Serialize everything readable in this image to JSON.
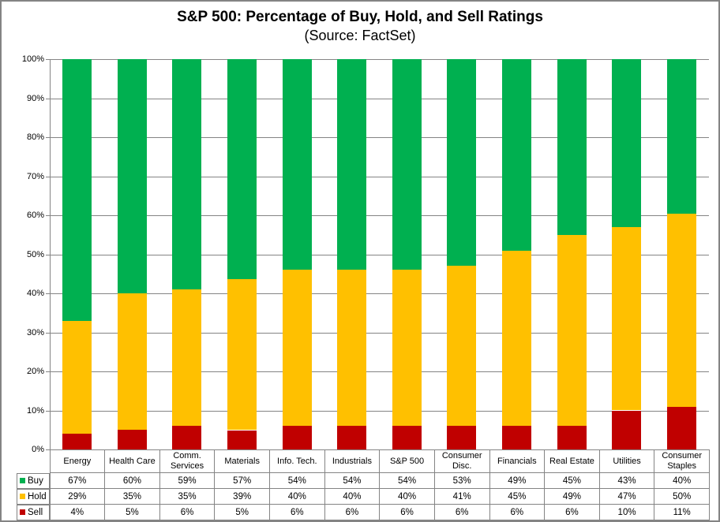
{
  "figure": {
    "title": "S&P 500: Percentage of Buy, Hold, and Sell Ratings",
    "subtitle": "(Source: FactSet)"
  },
  "colors": {
    "buy": "#00B050",
    "hold": "#FFC000",
    "sell": "#C00000",
    "gridline": "#848484",
    "axis": "#848484",
    "table_border": "#848484",
    "figure_border": "#848484",
    "text": "#000000",
    "background": "#FFFFFF"
  },
  "chart_data": {
    "type": "bar",
    "stacked": true,
    "percent_stacked": true,
    "title": "S&P 500: Percentage of Buy, Hold, and Sell Ratings",
    "subtitle": "(Source: FactSet)",
    "categories": [
      "Energy",
      "Health Care",
      "Comm. Services",
      "Materials",
      "Info. Tech.",
      "Industrials",
      "S&P 500",
      "Consumer Disc.",
      "Financials",
      "Real Estate",
      "Utilities",
      "Consumer Staples"
    ],
    "series": [
      {
        "name": "Buy",
        "color": "#00B050",
        "values": [
          67,
          60,
          59,
          57,
          54,
          54,
          54,
          53,
          49,
          45,
          43,
          40
        ]
      },
      {
        "name": "Hold",
        "color": "#FFC000",
        "values": [
          29,
          35,
          35,
          39,
          40,
          40,
          40,
          41,
          45,
          49,
          47,
          50
        ]
      },
      {
        "name": "Sell",
        "color": "#C00000",
        "values": [
          4,
          5,
          6,
          5,
          6,
          6,
          6,
          6,
          6,
          6,
          10,
          11
        ]
      }
    ],
    "value_suffix": "%",
    "y_axis": {
      "min": 0,
      "max": 100,
      "step": 10,
      "tick_labels": [
        "0%",
        "10%",
        "20%",
        "30%",
        "40%",
        "50%",
        "60%",
        "70%",
        "80%",
        "90%",
        "100%"
      ]
    },
    "grid": true,
    "legend_position": "data-table-left",
    "data_table": true,
    "xlabel": "",
    "ylabel": ""
  }
}
